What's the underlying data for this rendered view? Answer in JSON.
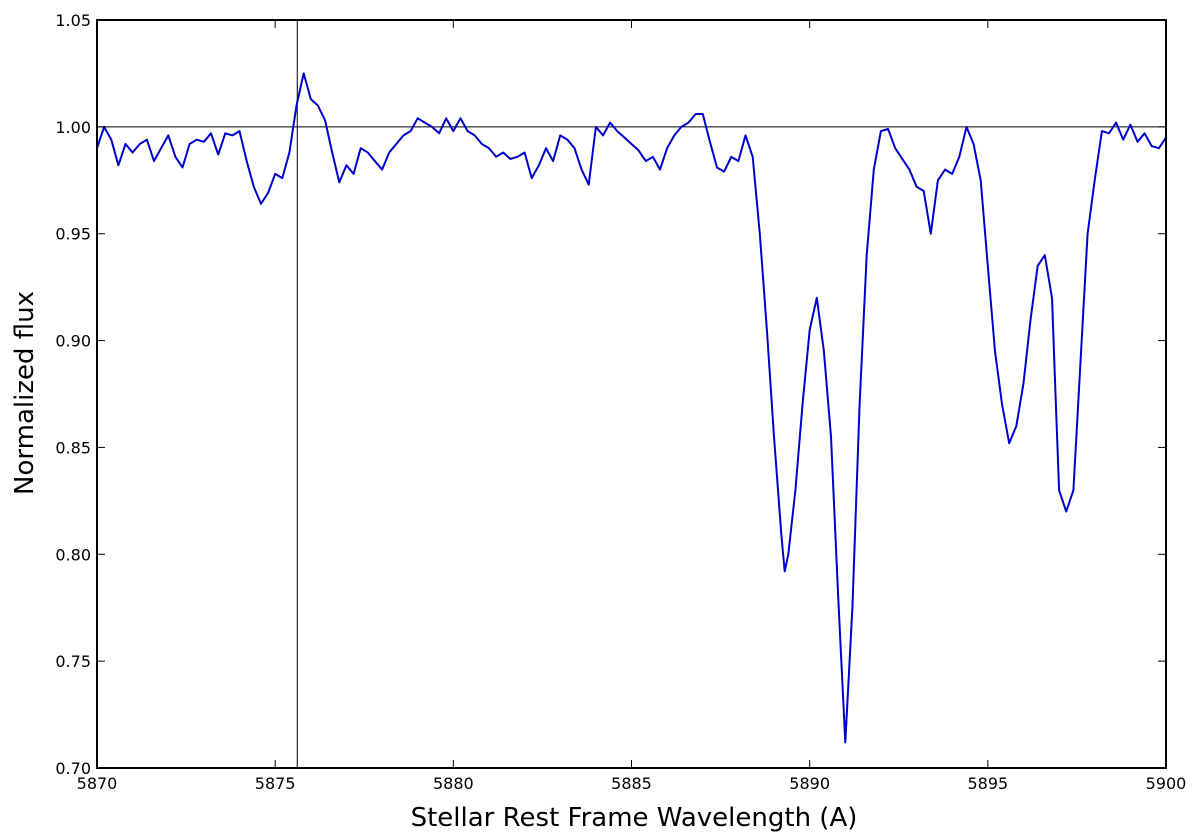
{
  "chart_data": {
    "type": "line",
    "title": "",
    "xlabel": "Stellar Rest Frame Wavelength (A)",
    "ylabel": "Normalized flux",
    "xlim": [
      5870,
      5900
    ],
    "ylim": [
      0.7,
      1.05
    ],
    "x_ticks": [
      5870,
      5875,
      5880,
      5885,
      5890,
      5895,
      5900
    ],
    "x_tick_labels": [
      "5870",
      "5875",
      "5880",
      "5885",
      "5890",
      "5895",
      "5900"
    ],
    "y_ticks": [
      0.7,
      0.75,
      0.8,
      0.85,
      0.9,
      0.95,
      1.0,
      1.05
    ],
    "y_tick_labels": [
      "0.70",
      "0.75",
      "0.80",
      "0.85",
      "0.90",
      "0.95",
      "1.00",
      "1.05"
    ],
    "grid": false,
    "legend": "none",
    "reference_lines": {
      "horizontal_y": 1.0,
      "vertical_x": 5875.62
    },
    "series": [
      {
        "color": "#0000cc",
        "x": [
          5870.0,
          5870.2,
          5870.4,
          5870.6,
          5870.8,
          5871.0,
          5871.2,
          5871.4,
          5871.6,
          5871.8,
          5872.0,
          5872.2,
          5872.4,
          5872.6,
          5872.8,
          5873.0,
          5873.2,
          5873.4,
          5873.6,
          5873.8,
          5874.0,
          5874.2,
          5874.4,
          5874.6,
          5874.8,
          5875.0,
          5875.2,
          5875.4,
          5875.6,
          5875.8,
          5876.0,
          5876.2,
          5876.4,
          5876.6,
          5876.8,
          5877.0,
          5877.2,
          5877.4,
          5877.6,
          5877.8,
          5878.0,
          5878.2,
          5878.4,
          5878.6,
          5878.8,
          5879.0,
          5879.2,
          5879.4,
          5879.6,
          5879.8,
          5880.0,
          5880.2,
          5880.4,
          5880.6,
          5880.8,
          5881.0,
          5881.2,
          5881.4,
          5881.6,
          5881.8,
          5882.0,
          5882.2,
          5882.4,
          5882.6,
          5882.8,
          5883.0,
          5883.2,
          5883.4,
          5883.6,
          5883.8,
          5884.0,
          5884.2,
          5884.4,
          5884.6,
          5884.8,
          5885.0,
          5885.2,
          5885.4,
          5885.6,
          5885.8,
          5886.0,
          5886.2,
          5886.4,
          5886.6,
          5886.8,
          5887.0,
          5887.2,
          5887.4,
          5887.6,
          5887.8,
          5888.0,
          5888.2,
          5888.4,
          5888.6,
          5888.8,
          5889.0,
          5889.2,
          5889.3,
          5889.4,
          5889.6,
          5889.8,
          5890.0,
          5890.2,
          5890.4,
          5890.6,
          5890.8,
          5891.0,
          5891.2,
          5891.4,
          5891.6,
          5891.8,
          5892.0,
          5892.2,
          5892.4,
          5892.6,
          5892.8,
          5893.0,
          5893.2,
          5893.4,
          5893.6,
          5893.8,
          5894.0,
          5894.2,
          5894.4,
          5894.6,
          5894.8,
          5895.0,
          5895.2,
          5895.4,
          5895.6,
          5895.8,
          5896.0,
          5896.2,
          5896.4,
          5896.6,
          5896.8,
          5896.9,
          5897.0,
          5897.2,
          5897.4,
          5897.6,
          5897.8,
          5898.0,
          5898.2,
          5898.4,
          5898.6,
          5898.8,
          5899.0,
          5899.2,
          5899.4,
          5899.6,
          5899.8,
          5900.0
        ],
        "y": [
          0.99,
          1.0,
          0.994,
          0.982,
          0.992,
          0.988,
          0.992,
          0.994,
          0.984,
          0.99,
          0.996,
          0.986,
          0.981,
          0.992,
          0.994,
          0.993,
          0.997,
          0.987,
          0.997,
          0.996,
          0.998,
          0.984,
          0.972,
          0.964,
          0.969,
          0.978,
          0.976,
          0.988,
          1.01,
          1.025,
          1.013,
          1.01,
          1.003,
          0.988,
          0.974,
          0.982,
          0.978,
          0.99,
          0.988,
          0.984,
          0.98,
          0.988,
          0.992,
          0.996,
          0.998,
          1.004,
          1.002,
          1.0,
          0.997,
          1.004,
          0.998,
          1.004,
          0.998,
          0.996,
          0.992,
          0.99,
          0.986,
          0.988,
          0.985,
          0.986,
          0.988,
          0.976,
          0.982,
          0.99,
          0.984,
          0.996,
          0.994,
          0.99,
          0.98,
          0.973,
          1.0,
          0.996,
          1.002,
          0.998,
          0.995,
          0.992,
          0.989,
          0.984,
          0.986,
          0.98,
          0.99,
          0.996,
          1.0,
          1.002,
          1.006,
          1.006,
          0.993,
          0.981,
          0.979,
          0.986,
          0.984,
          0.996,
          0.986,
          0.95,
          0.905,
          0.855,
          0.81,
          0.792,
          0.8,
          0.83,
          0.87,
          0.905,
          0.92,
          0.895,
          0.855,
          0.78,
          0.712,
          0.775,
          0.87,
          0.94,
          0.98,
          0.998,
          0.999,
          0.99,
          0.985,
          0.98,
          0.972,
          0.97,
          0.95,
          0.975,
          0.98,
          0.978,
          0.986,
          1.0,
          0.992,
          0.975,
          0.935,
          0.895,
          0.87,
          0.852,
          0.86,
          0.88,
          0.91,
          0.935,
          0.94,
          0.92,
          0.875,
          0.83,
          0.82,
          0.83,
          0.89,
          0.95,
          0.975,
          0.998,
          0.997,
          1.002,
          0.994,
          1.001,
          0.993,
          0.997,
          0.991,
          0.99,
          0.995
        ]
      }
    ]
  }
}
